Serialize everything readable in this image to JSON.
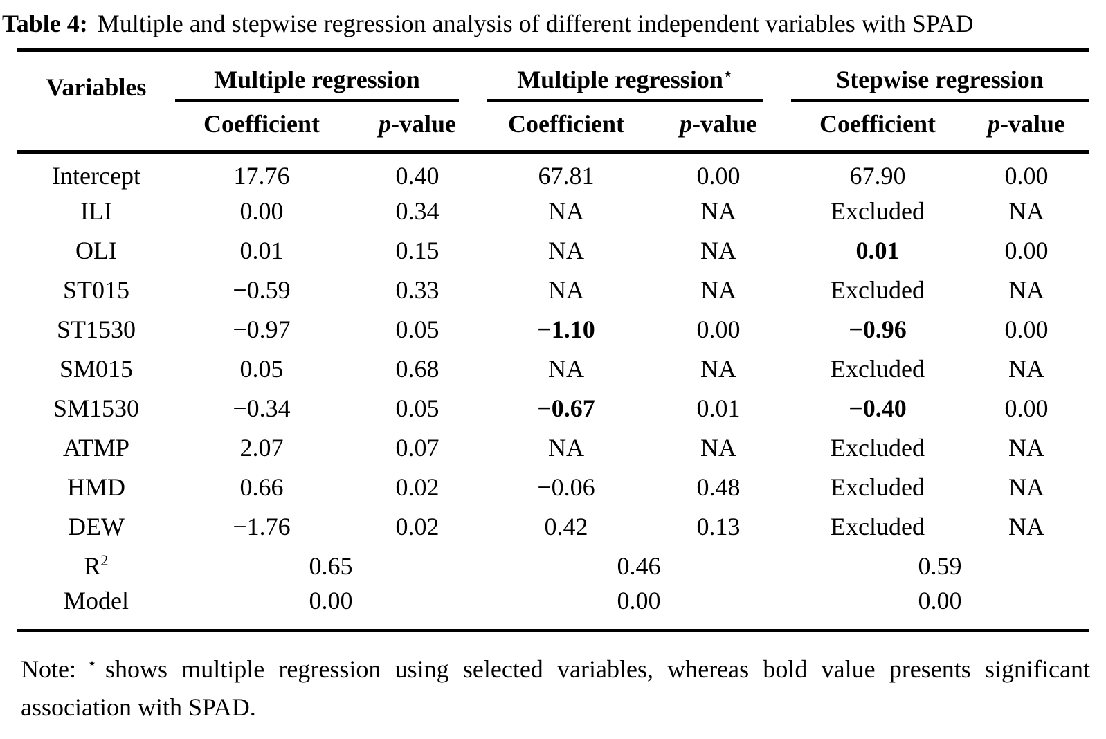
{
  "colors": {
    "text": "#000000",
    "background": "#ffffff",
    "rule": "#000000"
  },
  "caption": {
    "prefix": "Table 4:",
    "text": "Multiple and stepwise regression analysis of different independent variables with SPAD"
  },
  "table": {
    "variables_header": "Variables",
    "groups": [
      {
        "label": "Multiple regression",
        "sup": ""
      },
      {
        "label": "Multiple regression",
        "sup": "⋆"
      },
      {
        "label": "Stepwise regression",
        "sup": ""
      }
    ],
    "subheaders": [
      {
        "coefficient": "Coefficient",
        "p_italic": "p",
        "p_suffix": "-value"
      },
      {
        "coefficient": "Coefficient",
        "p_italic": "p",
        "p_suffix": "-value"
      },
      {
        "coefficient": "Coefficient",
        "p_italic": "p",
        "p_suffix": "-value"
      }
    ],
    "rows": [
      {
        "type": "data",
        "label": "Intercept",
        "cells": [
          {
            "v": "17.76"
          },
          {
            "v": "0.40"
          },
          {
            "v": "67.81"
          },
          {
            "v": "0.00"
          },
          {
            "v": "67.90"
          },
          {
            "v": "0.00"
          }
        ]
      },
      {
        "type": "data",
        "label": "ILI",
        "cells": [
          {
            "v": "0.00"
          },
          {
            "v": "0.34"
          },
          {
            "v": "NA"
          },
          {
            "v": "NA"
          },
          {
            "v": "Excluded"
          },
          {
            "v": "NA"
          }
        ]
      },
      {
        "type": "data",
        "label": "OLI",
        "cells": [
          {
            "v": "0.01"
          },
          {
            "v": "0.15"
          },
          {
            "v": "NA"
          },
          {
            "v": "NA"
          },
          {
            "v": "0.01",
            "b": true
          },
          {
            "v": "0.00"
          }
        ]
      },
      {
        "type": "data",
        "label": "ST015",
        "cells": [
          {
            "v": "−0.59"
          },
          {
            "v": "0.33"
          },
          {
            "v": "NA"
          },
          {
            "v": "NA"
          },
          {
            "v": "Excluded"
          },
          {
            "v": "NA"
          }
        ]
      },
      {
        "type": "data",
        "label": "ST1530",
        "cells": [
          {
            "v": "−0.97"
          },
          {
            "v": "0.05"
          },
          {
            "v": "−1.10",
            "b": true
          },
          {
            "v": "0.00"
          },
          {
            "v": "−0.96",
            "b": true
          },
          {
            "v": "0.00"
          }
        ]
      },
      {
        "type": "data",
        "label": "SM015",
        "cells": [
          {
            "v": "0.05"
          },
          {
            "v": "0.68"
          },
          {
            "v": "NA"
          },
          {
            "v": "NA"
          },
          {
            "v": "Excluded"
          },
          {
            "v": "NA"
          }
        ]
      },
      {
        "type": "data",
        "label": "SM1530",
        "cells": [
          {
            "v": "−0.34"
          },
          {
            "v": "0.05"
          },
          {
            "v": "−0.67",
            "b": true
          },
          {
            "v": "0.01"
          },
          {
            "v": "−0.40",
            "b": true
          },
          {
            "v": "0.00"
          }
        ]
      },
      {
        "type": "data",
        "label": "ATMP",
        "cells": [
          {
            "v": "2.07"
          },
          {
            "v": "0.07"
          },
          {
            "v": "NA"
          },
          {
            "v": "NA"
          },
          {
            "v": "Excluded"
          },
          {
            "v": "NA"
          }
        ]
      },
      {
        "type": "data",
        "label": "HMD",
        "cells": [
          {
            "v": "0.66"
          },
          {
            "v": "0.02"
          },
          {
            "v": "−0.06"
          },
          {
            "v": "0.48"
          },
          {
            "v": "Excluded"
          },
          {
            "v": "NA"
          }
        ]
      },
      {
        "type": "data",
        "label": "DEW",
        "cells": [
          {
            "v": "−1.76"
          },
          {
            "v": "0.02"
          },
          {
            "v": "0.42"
          },
          {
            "v": "0.13"
          },
          {
            "v": "Excluded"
          },
          {
            "v": "NA"
          }
        ]
      },
      {
        "type": "span",
        "label": "R",
        "label_sup": "2",
        "cells": [
          {
            "v": "0.65"
          },
          {
            "v": "0.46"
          },
          {
            "v": "0.59"
          }
        ]
      },
      {
        "type": "span",
        "label": "Model",
        "cells": [
          {
            "v": "0.00"
          },
          {
            "v": "0.00"
          },
          {
            "v": "0.00"
          }
        ]
      }
    ]
  },
  "note": {
    "prefix": "Note:",
    "star": "⋆",
    "text": "shows multiple regression using selected variables, whereas bold value presents significant association with SPAD."
  }
}
